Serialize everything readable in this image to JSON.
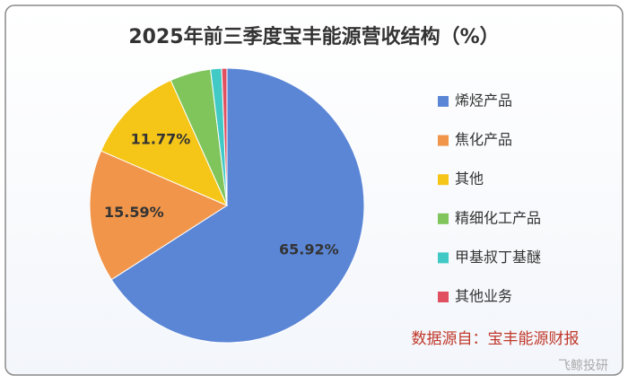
{
  "chart_data": {
    "type": "pie",
    "title": "2025年前三季度宝丰能源营收结构（%）",
    "categories": [
      "烯烃产品",
      "焦化产品",
      "其他",
      "精细化工产品",
      "甲基叔丁基醚",
      "其他业务"
    ],
    "values": [
      65.92,
      15.59,
      11.77,
      4.8,
      1.3,
      0.62
    ],
    "value_labels": [
      "65.92%",
      "15.59%",
      "11.77%",
      null,
      null,
      null
    ],
    "colors": [
      "#5b86d6",
      "#f0954a",
      "#f5c518",
      "#7fc55c",
      "#40c9c5",
      "#e05060"
    ],
    "legend": "right"
  },
  "source": "数据源自：宝丰能源财报",
  "watermark": "飞鲸投研"
}
